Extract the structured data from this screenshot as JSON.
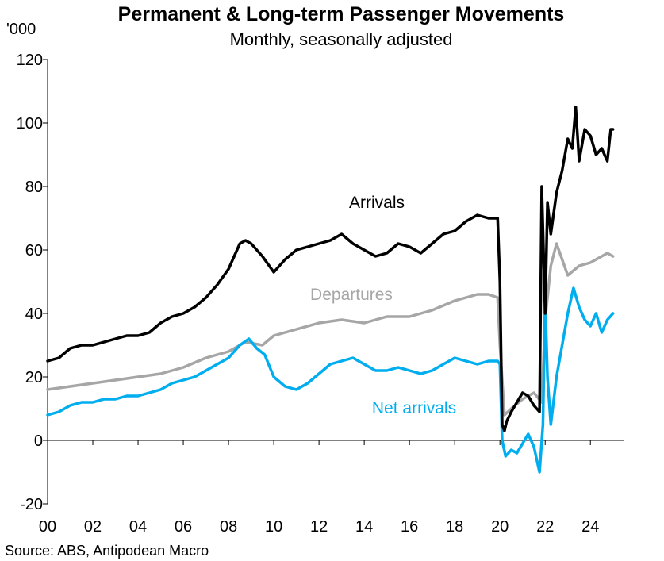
{
  "chart_data": {
    "type": "line",
    "title": "Permanent & Long-term Passenger Movements",
    "subtitle": "Monthly, seasonally adjusted",
    "y_unit": "'000",
    "source": "Source: ABS, Antipodean Macro",
    "xlim": [
      2000,
      2025.5
    ],
    "ylim": [
      -20,
      120
    ],
    "yticks": [
      -20,
      0,
      20,
      40,
      60,
      80,
      100,
      120
    ],
    "ytick_labels": [
      "-20",
      "0",
      "20",
      "40",
      "60",
      "80",
      "100",
      "120"
    ],
    "xticks": [
      2000,
      2002,
      2004,
      2006,
      2008,
      2010,
      2012,
      2014,
      2016,
      2018,
      2020,
      2022,
      2024
    ],
    "xtick_labels": [
      "00",
      "02",
      "04",
      "06",
      "08",
      "10",
      "12",
      "14",
      "16",
      "18",
      "20",
      "22",
      "24"
    ],
    "grid": false,
    "series": [
      {
        "name": "Arrivals",
        "color": "#000000",
        "x": [
          2000.0,
          2000.5,
          2001.0,
          2001.5,
          2002.0,
          2002.5,
          2003.0,
          2003.5,
          2004.0,
          2004.5,
          2005.0,
          2005.5,
          2006.0,
          2006.5,
          2007.0,
          2007.5,
          2008.0,
          2008.5,
          2008.75,
          2009.0,
          2009.5,
          2010.0,
          2010.25,
          2010.5,
          2011.0,
          2011.5,
          2012.0,
          2012.5,
          2013.0,
          2013.5,
          2014.0,
          2014.5,
          2015.0,
          2015.5,
          2016.0,
          2016.5,
          2017.0,
          2017.5,
          2018.0,
          2018.5,
          2019.0,
          2019.5,
          2019.9,
          2020.0,
          2020.1,
          2020.2,
          2020.3,
          2020.5,
          2020.75,
          2021.0,
          2021.25,
          2021.5,
          2021.75,
          2021.85,
          2022.0,
          2022.1,
          2022.25,
          2022.5,
          2022.75,
          2023.0,
          2023.2,
          2023.35,
          2023.5,
          2023.75,
          2024.0,
          2024.25,
          2024.5,
          2024.75,
          2024.9,
          2025.0
        ],
        "values": [
          25,
          26,
          29,
          30,
          30,
          31,
          32,
          33,
          33,
          34,
          37,
          39,
          40,
          42,
          45,
          49,
          54,
          62,
          63,
          62,
          58,
          53,
          55,
          57,
          60,
          61,
          62,
          63,
          65,
          62,
          60,
          58,
          59,
          62,
          61,
          59,
          62,
          65,
          66,
          69,
          71,
          70,
          70,
          50,
          5,
          3,
          6,
          9,
          12,
          15,
          14,
          11,
          9,
          80,
          40,
          75,
          65,
          78,
          85,
          95,
          92,
          105,
          88,
          98,
          96,
          90,
          92,
          88,
          98,
          98
        ]
      },
      {
        "name": "Departures",
        "color": "#a6a6a6",
        "x": [
          2000.0,
          2001.0,
          2002.0,
          2003.0,
          2004.0,
          2005.0,
          2006.0,
          2007.0,
          2008.0,
          2008.75,
          2009.5,
          2010.0,
          2011.0,
          2012.0,
          2013.0,
          2014.0,
          2015.0,
          2016.0,
          2017.0,
          2018.0,
          2019.0,
          2019.5,
          2019.9,
          2020.0,
          2020.2,
          2020.5,
          2021.0,
          2021.5,
          2021.85,
          2022.0,
          2022.25,
          2022.5,
          2023.0,
          2023.5,
          2024.0,
          2024.5,
          2024.75,
          2025.0
        ],
        "values": [
          16,
          17,
          18,
          19,
          20,
          21,
          23,
          26,
          28,
          31,
          30,
          33,
          35,
          37,
          38,
          37,
          39,
          39,
          41,
          44,
          46,
          46,
          45,
          30,
          8,
          10,
          13,
          15,
          12,
          38,
          55,
          62,
          52,
          55,
          56,
          58,
          59,
          58
        ]
      },
      {
        "name": "Net arrivals",
        "color": "#00aeef",
        "x": [
          2000.0,
          2000.5,
          2001.0,
          2001.5,
          2002.0,
          2002.5,
          2003.0,
          2003.5,
          2004.0,
          2004.5,
          2005.0,
          2005.5,
          2006.0,
          2006.5,
          2007.0,
          2007.5,
          2008.0,
          2008.5,
          2008.9,
          2009.25,
          2009.6,
          2010.0,
          2010.5,
          2011.0,
          2011.5,
          2012.0,
          2012.5,
          2013.0,
          2013.5,
          2014.0,
          2014.5,
          2015.0,
          2015.5,
          2016.0,
          2016.5,
          2017.0,
          2017.5,
          2018.0,
          2018.5,
          2019.0,
          2019.5,
          2019.9,
          2020.0,
          2020.1,
          2020.25,
          2020.5,
          2020.75,
          2021.0,
          2021.25,
          2021.5,
          2021.75,
          2021.9,
          2022.0,
          2022.1,
          2022.25,
          2022.5,
          2022.75,
          2023.0,
          2023.25,
          2023.5,
          2023.75,
          2024.0,
          2024.25,
          2024.5,
          2024.75,
          2025.0
        ],
        "values": [
          8,
          9,
          11,
          12,
          12,
          13,
          13,
          14,
          14,
          15,
          16,
          18,
          19,
          20,
          22,
          24,
          26,
          30,
          32,
          29,
          27,
          20,
          17,
          16,
          18,
          21,
          24,
          25,
          26,
          24,
          22,
          22,
          23,
          22,
          21,
          22,
          24,
          26,
          25,
          24,
          25,
          25,
          24,
          0,
          -5,
          -3,
          -4,
          -1,
          2,
          -2,
          -10,
          5,
          45,
          20,
          5,
          20,
          30,
          40,
          48,
          42,
          38,
          36,
          40,
          34,
          38,
          40
        ]
      }
    ],
    "labels": [
      {
        "text": "Arrivals",
        "series": 0
      },
      {
        "text": "Departures",
        "series": 1
      },
      {
        "text": "Net arrivals",
        "series": 2
      }
    ]
  }
}
